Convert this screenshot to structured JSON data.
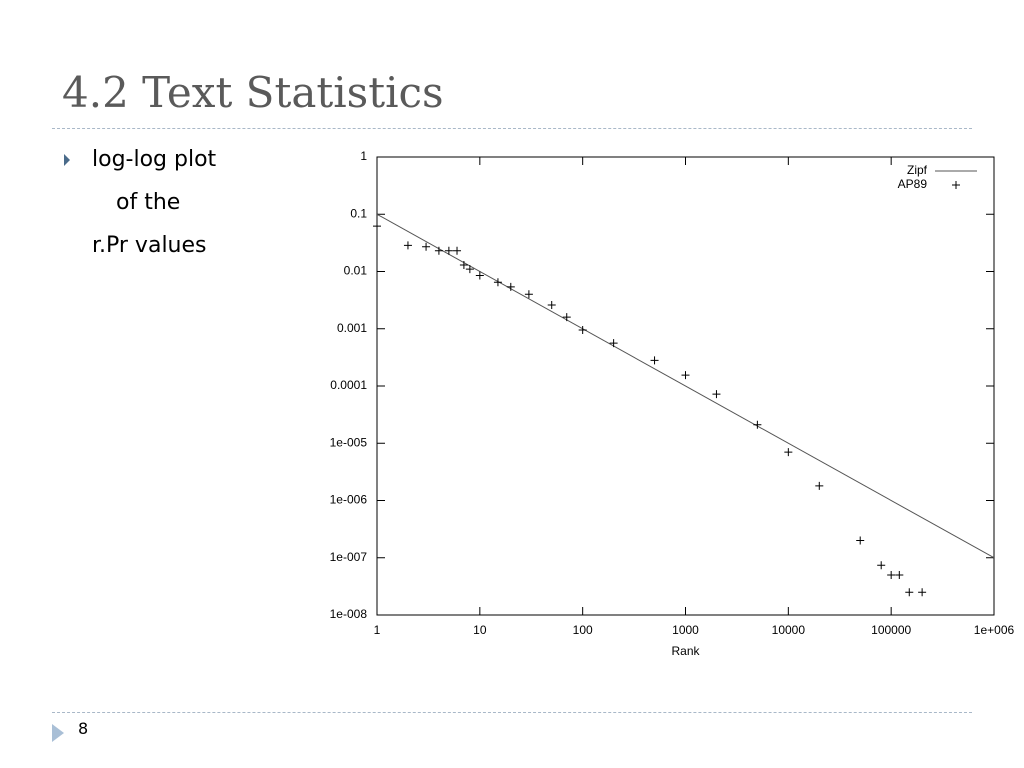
{
  "slide": {
    "title": "4.2 Text Statistics",
    "bullet_lines": [
      "log-log plot",
      "of the",
      "r.Pr values"
    ],
    "page_number": "8"
  },
  "chart_data": {
    "type": "scatter",
    "xscale": "log",
    "yscale": "log",
    "x_label": "Rank",
    "xlim": [
      1,
      1000000
    ],
    "ylim": [
      1e-08,
      1
    ],
    "xticks": [
      1,
      10,
      100,
      1000,
      10000,
      100000,
      {
        "value": 1000000,
        "label": "1e+006"
      }
    ],
    "yticks": [
      {
        "value": 1e-08,
        "label": "1e-008"
      },
      {
        "value": 1e-07,
        "label": "1e-007"
      },
      {
        "value": 1e-06,
        "label": "1e-006"
      },
      {
        "value": 1e-05,
        "label": "1e-005"
      },
      0.0001,
      0.001,
      0.01,
      0.1,
      1
    ],
    "legend": "top-right",
    "series": [
      {
        "name": "Zipf",
        "style": "line",
        "color": "#555555",
        "x": [
          1,
          1000000
        ],
        "values": [
          0.1,
          1e-07
        ]
      },
      {
        "name": "AP89",
        "style": "plus",
        "color": "#000000",
        "x": [
          1,
          2,
          3,
          4,
          5,
          6,
          7,
          8,
          10,
          15,
          20,
          30,
          50,
          70,
          100,
          200,
          500,
          1000,
          2000,
          5000,
          10000,
          20000,
          50000,
          80000,
          100000,
          120000,
          150000,
          200000
        ],
        "values": [
          0.062,
          0.0286,
          0.027,
          0.023,
          0.023,
          0.023,
          0.013,
          0.011,
          0.0085,
          0.0065,
          0.0054,
          0.004,
          0.0026,
          0.0016,
          0.00095,
          0.00056,
          0.00028,
          0.000155,
          7.2e-05,
          2.1e-05,
          7e-06,
          1.8e-06,
          2e-07,
          7.4e-08,
          5e-08,
          5e-08,
          2.5e-08,
          2.5e-08
        ]
      }
    ]
  }
}
